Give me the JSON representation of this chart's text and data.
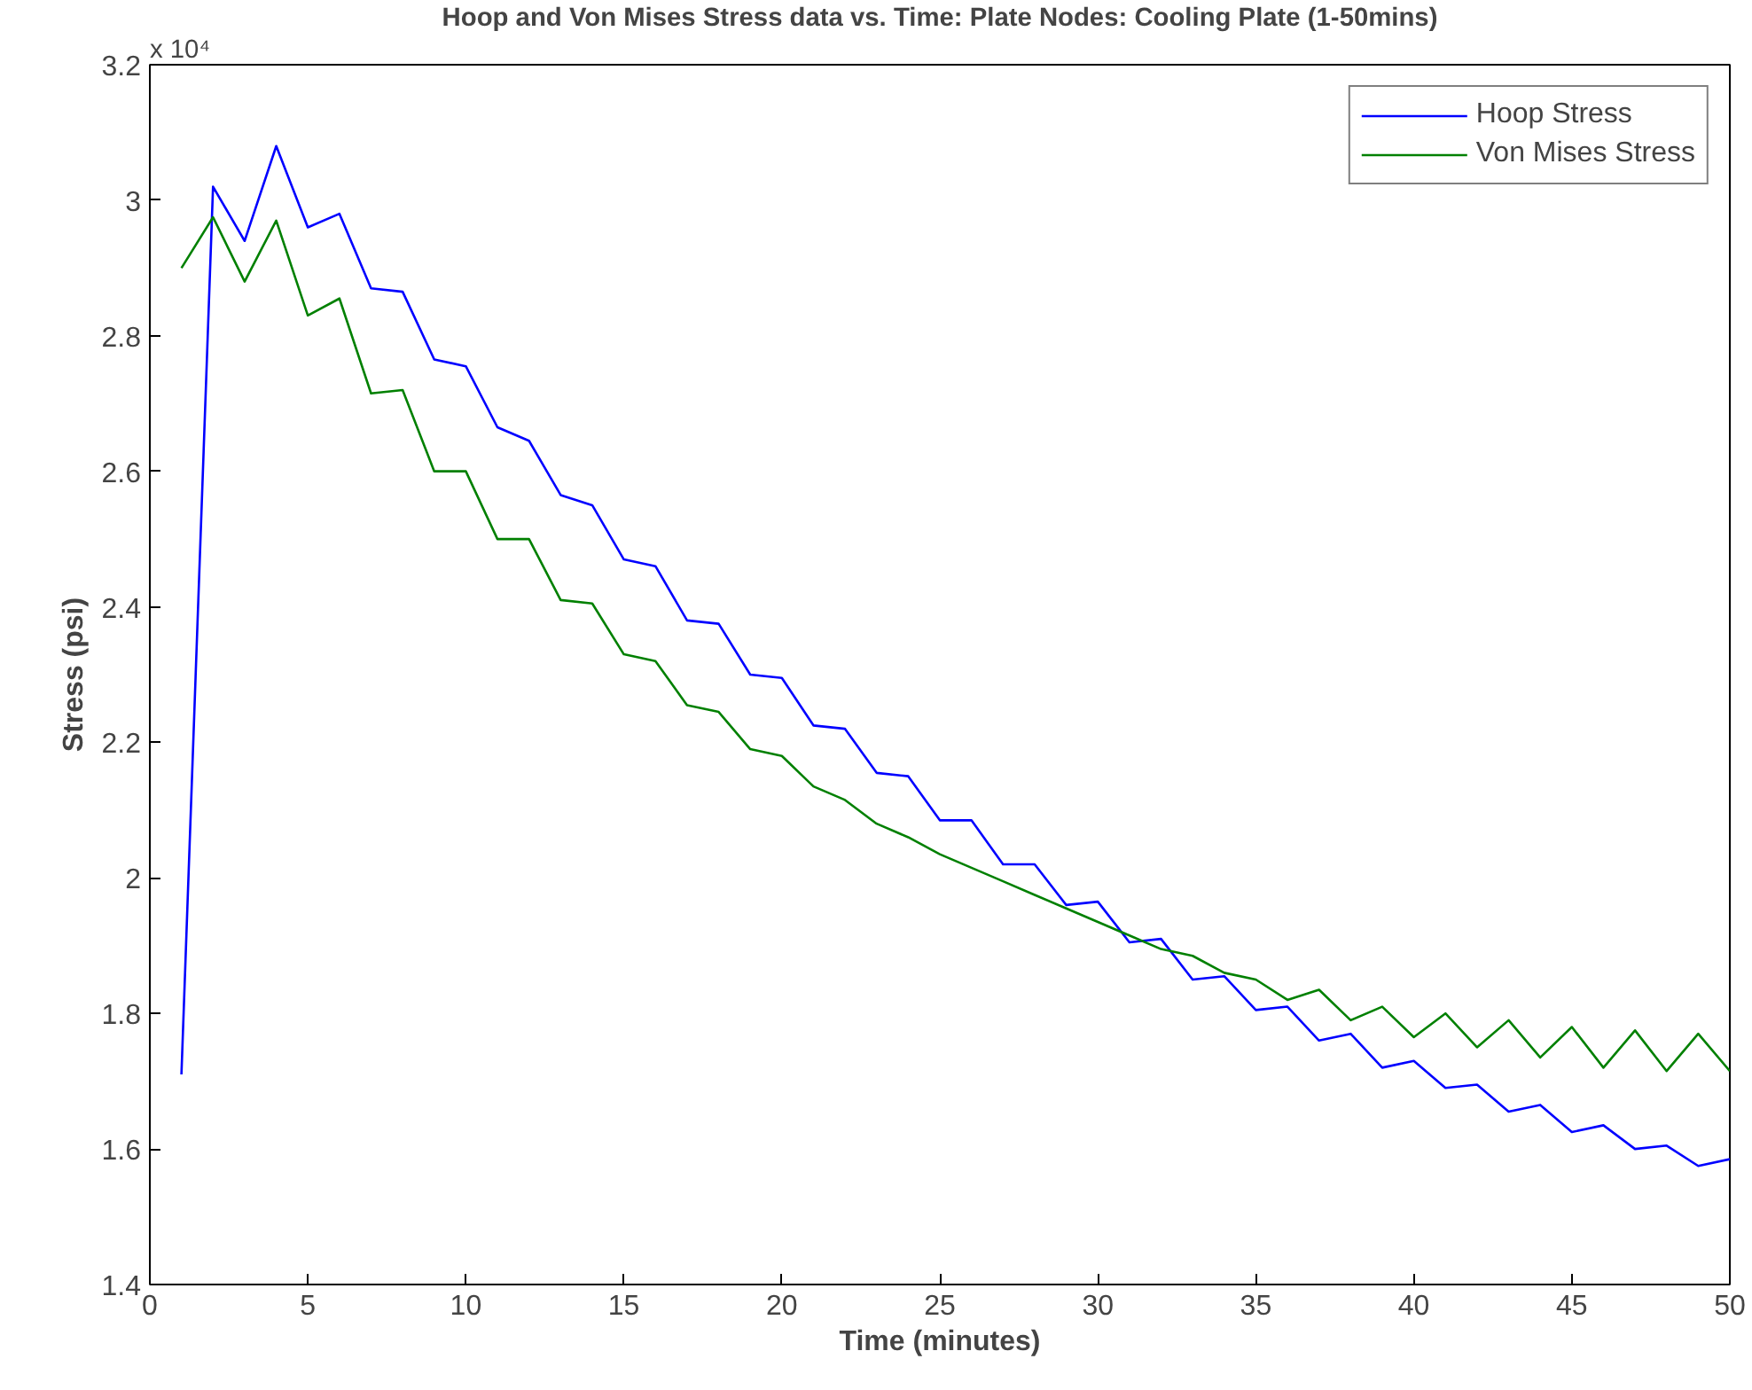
{
  "chart_data": {
    "type": "line",
    "title": "Hoop and Von Mises Stress data vs. Time: Plate Nodes: Cooling Plate (1-50mins)",
    "xlabel": "Time (minutes)",
    "ylabel": "Stress (psi)",
    "annotations": [
      "x 10⁴"
    ],
    "x": [
      1,
      2,
      3,
      4,
      5,
      6,
      7,
      8,
      9,
      10,
      11,
      12,
      13,
      14,
      15,
      16,
      17,
      18,
      19,
      20,
      21,
      22,
      23,
      24,
      25,
      26,
      27,
      28,
      29,
      30,
      31,
      32,
      33,
      34,
      35,
      36,
      37,
      38,
      39,
      40,
      41,
      42,
      43,
      44,
      45,
      46,
      47,
      48,
      49,
      50
    ],
    "series": [
      {
        "name": "Hoop Stress",
        "color": "#0000ff",
        "values": [
          1.71,
          3.02,
          2.94,
          3.08,
          2.96,
          2.98,
          2.87,
          2.865,
          2.765,
          2.755,
          2.665,
          2.645,
          2.565,
          2.55,
          2.47,
          2.46,
          2.38,
          2.375,
          2.3,
          2.295,
          2.225,
          2.22,
          2.155,
          2.15,
          2.085,
          2.085,
          2.02,
          2.02,
          1.96,
          1.965,
          1.905,
          1.91,
          1.85,
          1.855,
          1.805,
          1.81,
          1.76,
          1.77,
          1.72,
          1.73,
          1.69,
          1.695,
          1.655,
          1.665,
          1.625,
          1.635,
          1.6,
          1.605,
          1.575,
          1.585
        ]
      },
      {
        "name": "Von Mises Stress",
        "color": "#008000",
        "values": [
          2.9,
          2.975,
          2.88,
          2.97,
          2.83,
          2.855,
          2.715,
          2.72,
          2.6,
          2.6,
          2.5,
          2.5,
          2.41,
          2.405,
          2.33,
          2.32,
          2.255,
          2.245,
          2.19,
          2.18,
          2.135,
          2.115,
          2.08,
          2.06,
          2.035,
          2.015,
          1.995,
          1.975,
          1.955,
          1.935,
          1.915,
          1.895,
          1.885,
          1.86,
          1.85,
          1.82,
          1.835,
          1.79,
          1.81,
          1.765,
          1.8,
          1.75,
          1.79,
          1.735,
          1.78,
          1.72,
          1.775,
          1.715,
          1.77,
          1.715
        ]
      }
    ],
    "xlim": [
      0,
      50
    ],
    "xticks": [
      0,
      5,
      10,
      15,
      20,
      25,
      30,
      35,
      40,
      45,
      50
    ],
    "ylim": [
      1.4,
      3.2
    ],
    "yticks": [
      1.4,
      1.6,
      1.8,
      2,
      2.2,
      2.4,
      2.6,
      2.8,
      3,
      3.2
    ],
    "grid": false,
    "legend": "top right",
    "marker": "none",
    "line_style": "solid"
  }
}
